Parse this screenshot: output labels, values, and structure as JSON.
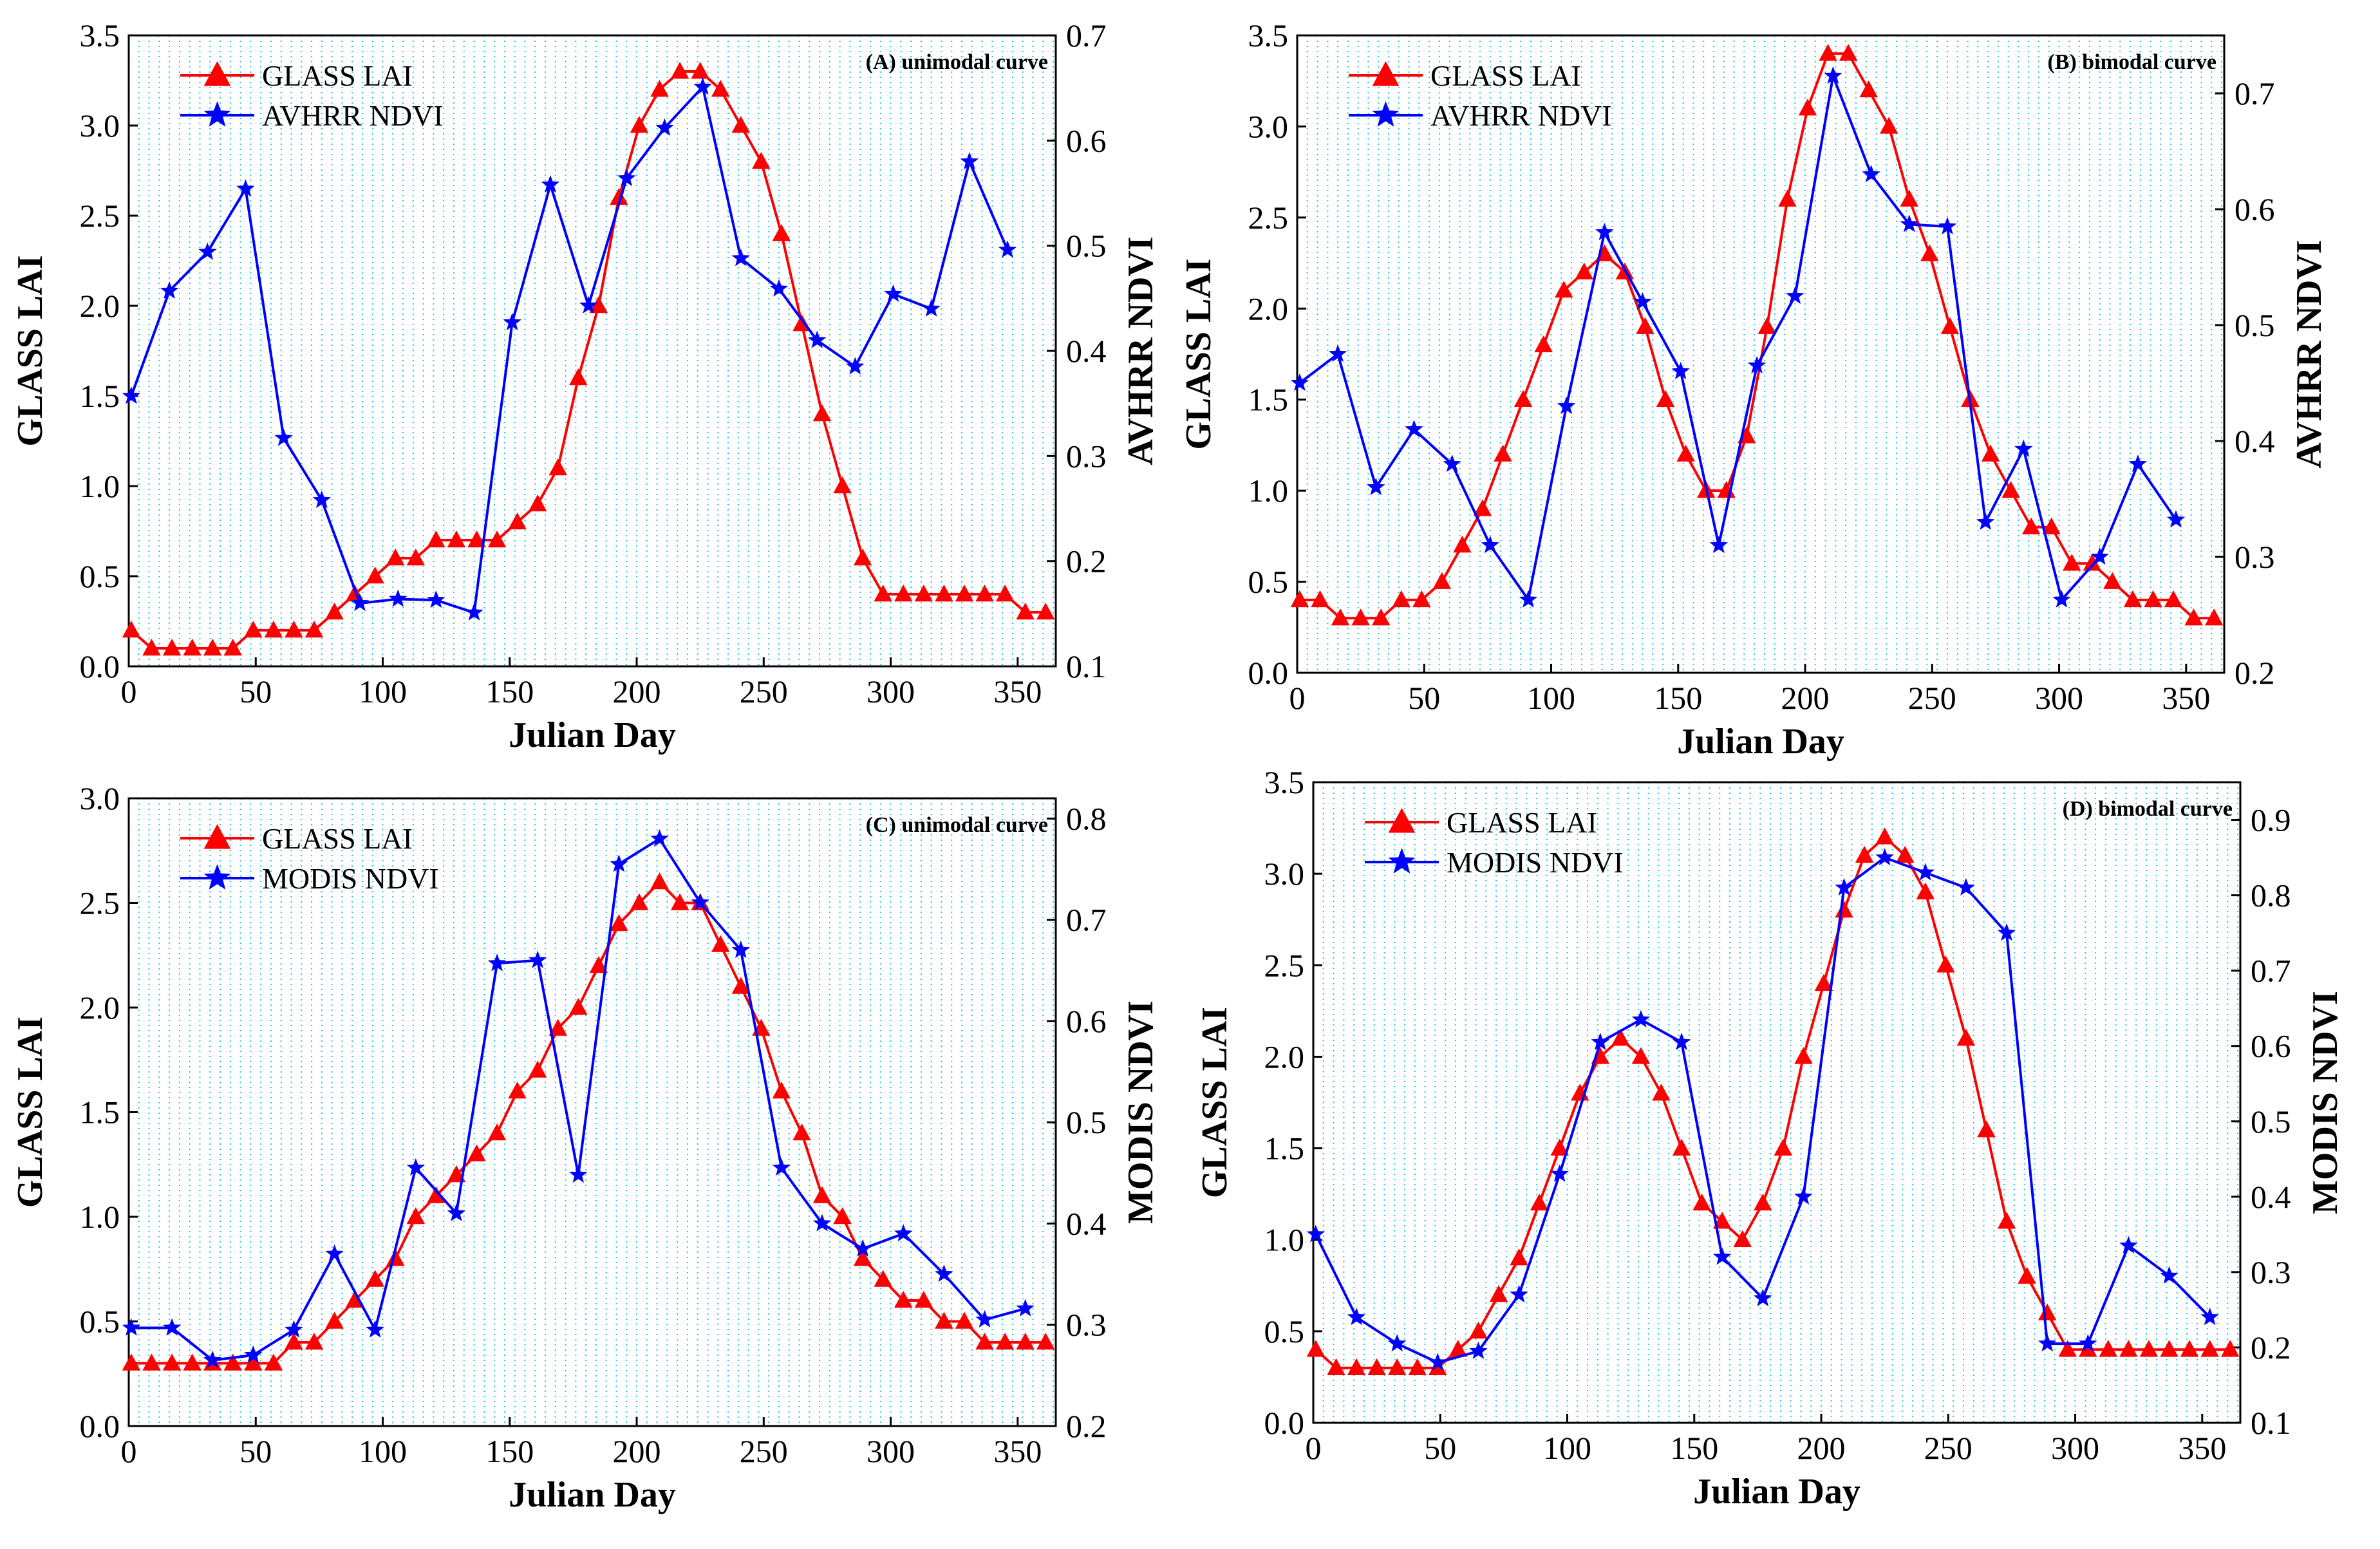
{
  "chart_data": [
    {
      "type": "line",
      "title": "(A)  unimodal curve",
      "xlabel": "Julian Day",
      "ylabel": "GLASS LAI",
      "y2label": "AVHRR NDVI",
      "xlim": [
        0,
        365
      ],
      "ylim": [
        0,
        3.5
      ],
      "y2lim": [
        0.1,
        0.7
      ],
      "xticks": [
        "0",
        "50",
        "100",
        "150",
        "200",
        "250",
        "300",
        "350"
      ],
      "yticks": [
        "0.0",
        "0.5",
        "1.0",
        "1.5",
        "2.0",
        "2.5",
        "3.0",
        "3.5"
      ],
      "y2ticks": [
        "0.1",
        "0.2",
        "0.3",
        "0.4",
        "0.5",
        "0.6",
        "0.7"
      ],
      "legend": [
        "GLASS LAI",
        "AVHRR NDVI"
      ],
      "series": [
        {
          "name": "GLASS LAI",
          "axis": "left",
          "color": "#ff0000",
          "marker": "triangle",
          "x": [
            1,
            9,
            17,
            25,
            33,
            41,
            49,
            57,
            65,
            73,
            81,
            89,
            97,
            105,
            113,
            121,
            129,
            137,
            145,
            153,
            161,
            169,
            177,
            185,
            193,
            201,
            209,
            217,
            225,
            233,
            241,
            249,
            257,
            265,
            273,
            281,
            289,
            297,
            305,
            313,
            321,
            329,
            337,
            345,
            353,
            361
          ],
          "y": [
            0.2,
            0.1,
            0.1,
            0.1,
            0.1,
            0.1,
            0.2,
            0.2,
            0.2,
            0.2,
            0.3,
            0.4,
            0.5,
            0.6,
            0.6,
            0.7,
            0.7,
            0.7,
            0.7,
            0.8,
            0.9,
            1.1,
            1.6,
            2.0,
            2.6,
            3.0,
            3.2,
            3.3,
            3.3,
            3.2,
            3.0,
            2.8,
            2.4,
            1.9,
            1.4,
            1.0,
            0.6,
            0.4,
            0.4,
            0.4,
            0.4,
            0.4,
            0.4,
            0.4,
            0.3,
            0.3
          ]
        },
        {
          "name": "AVHRR NDVI",
          "axis": "right",
          "color": "#0000ff",
          "marker": "star",
          "x": [
            1,
            16,
            31,
            46,
            61,
            76,
            91,
            106,
            121,
            136,
            151,
            166,
            181,
            196,
            211,
            226,
            241,
            256,
            271,
            286,
            301,
            316,
            331,
            346
          ],
          "y": [
            0.357,
            0.457,
            0.494,
            0.554,
            0.317,
            0.258,
            0.16,
            0.164,
            0.163,
            0.151,
            0.427,
            0.558,
            0.443,
            0.564,
            0.612,
            0.651,
            0.488,
            0.459,
            0.41,
            0.385,
            0.454,
            0.44,
            0.58,
            0.496
          ]
        }
      ]
    },
    {
      "type": "line",
      "title": "(B)  bimodal curve",
      "xlabel": "Julian Day",
      "ylabel": "GLASS LAI",
      "y2label": "AVHRR NDVI",
      "xlim": [
        0,
        365
      ],
      "ylim": [
        0,
        3.5
      ],
      "y2lim": [
        0.2,
        0.75
      ],
      "xticks": [
        "0",
        "50",
        "100",
        "150",
        "200",
        "250",
        "300",
        "350"
      ],
      "yticks": [
        "0.0",
        "0.5",
        "1.0",
        "1.5",
        "2.0",
        "2.5",
        "3.0",
        "3.5"
      ],
      "y2ticks": [
        "0.2",
        "0.3",
        "0.4",
        "0.5",
        "0.6",
        "0.7"
      ],
      "legend": [
        "GLASS LAI",
        "AVHRR NDVI"
      ],
      "series": [
        {
          "name": "GLASS LAI",
          "axis": "left",
          "color": "#ff0000",
          "marker": "triangle",
          "x": [
            1,
            9,
            17,
            25,
            33,
            41,
            49,
            57,
            65,
            73,
            81,
            89,
            97,
            105,
            113,
            121,
            129,
            137,
            145,
            153,
            161,
            169,
            177,
            185,
            193,
            201,
            209,
            217,
            225,
            233,
            241,
            249,
            257,
            265,
            273,
            281,
            289,
            297,
            305,
            313,
            321,
            329,
            337,
            345,
            353,
            361
          ],
          "y": [
            0.4,
            0.4,
            0.3,
            0.3,
            0.3,
            0.4,
            0.4,
            0.5,
            0.7,
            0.9,
            1.2,
            1.5,
            1.8,
            2.1,
            2.2,
            2.3,
            2.2,
            1.9,
            1.5,
            1.2,
            1.0,
            1.0,
            1.3,
            1.9,
            2.6,
            3.1,
            3.4,
            3.4,
            3.2,
            3.0,
            2.6,
            2.3,
            1.9,
            1.5,
            1.2,
            1.0,
            0.8,
            0.8,
            0.6,
            0.6,
            0.5,
            0.4,
            0.4,
            0.4,
            0.3,
            0.3
          ]
        },
        {
          "name": "AVHRR NDVI",
          "axis": "right",
          "color": "#0000ff",
          "marker": "star",
          "x": [
            1,
            16,
            31,
            46,
            61,
            76,
            91,
            106,
            121,
            136,
            151,
            166,
            181,
            196,
            211,
            226,
            241,
            256,
            271,
            286,
            301,
            316,
            331,
            346
          ],
          "y": [
            0.45,
            0.475,
            0.36,
            0.41,
            0.38,
            0.31,
            0.263,
            0.43,
            0.58,
            0.52,
            0.46,
            0.31,
            0.465,
            0.525,
            0.715,
            0.63,
            0.587,
            0.585,
            0.33,
            0.393,
            0.263,
            0.3,
            0.38,
            0.332
          ]
        }
      ]
    },
    {
      "type": "line",
      "title": "(C)  unimodal curve",
      "xlabel": "Julian Day",
      "ylabel": "GLASS LAI",
      "y2label": "MODIS NDVI",
      "xlim": [
        0,
        365
      ],
      "ylim": [
        0,
        3.0
      ],
      "y2lim": [
        0.2,
        0.82
      ],
      "xticks": [
        "0",
        "50",
        "100",
        "150",
        "200",
        "250",
        "300",
        "350"
      ],
      "yticks": [
        "0.0",
        "0.5",
        "1.0",
        "1.5",
        "2.0",
        "2.5",
        "3.0"
      ],
      "y2ticks": [
        "0.2",
        "0.3",
        "0.4",
        "0.5",
        "0.6",
        "0.7",
        "0.8"
      ],
      "legend": [
        "GLASS LAI",
        "MODIS NDVI"
      ],
      "series": [
        {
          "name": "GLASS LAI",
          "axis": "left",
          "color": "#ff0000",
          "marker": "triangle",
          "x": [
            1,
            9,
            17,
            25,
            33,
            41,
            49,
            57,
            65,
            73,
            81,
            89,
            97,
            105,
            113,
            121,
            129,
            137,
            145,
            153,
            161,
            169,
            177,
            185,
            193,
            201,
            209,
            217,
            225,
            233,
            241,
            249,
            257,
            265,
            273,
            281,
            289,
            297,
            305,
            313,
            321,
            329,
            337,
            345,
            353,
            361
          ],
          "y": [
            0.3,
            0.3,
            0.3,
            0.3,
            0.3,
            0.3,
            0.3,
            0.3,
            0.4,
            0.4,
            0.5,
            0.6,
            0.7,
            0.8,
            1.0,
            1.1,
            1.2,
            1.3,
            1.4,
            1.6,
            1.7,
            1.9,
            2.0,
            2.2,
            2.4,
            2.5,
            2.6,
            2.5,
            2.5,
            2.3,
            2.1,
            1.9,
            1.6,
            1.4,
            1.1,
            1.0,
            0.8,
            0.7,
            0.6,
            0.6,
            0.5,
            0.5,
            0.4,
            0.4,
            0.4,
            0.4
          ]
        },
        {
          "name": "MODIS NDVI",
          "axis": "right",
          "color": "#0000ff",
          "marker": "star",
          "x": [
            1,
            17,
            33,
            49,
            65,
            81,
            97,
            113,
            129,
            145,
            161,
            177,
            193,
            209,
            225,
            241,
            257,
            273,
            289,
            305,
            321,
            337,
            353
          ],
          "y": [
            0.297,
            0.297,
            0.265,
            0.27,
            0.295,
            0.37,
            0.295,
            0.455,
            0.41,
            0.657,
            0.66,
            0.448,
            0.755,
            0.78,
            0.717,
            0.67,
            0.455,
            0.4,
            0.375,
            0.39,
            0.35,
            0.305,
            0.316
          ]
        }
      ]
    },
    {
      "type": "line",
      "title": "(D)  bimodal curve",
      "xlabel": "Julian Day",
      "ylabel": "GLASS LAI",
      "y2label": "MODIS NDVI",
      "xlim": [
        0,
        365
      ],
      "ylim": [
        0,
        3.5
      ],
      "y2lim": [
        0.1,
        0.95
      ],
      "xticks": [
        "0",
        "50",
        "100",
        "150",
        "200",
        "250",
        "300",
        "350"
      ],
      "yticks": [
        "0.0",
        "0.5",
        "1.0",
        "1.5",
        "2.0",
        "2.5",
        "3.0",
        "3.5"
      ],
      "y2ticks": [
        "0.1",
        "0.2",
        "0.3",
        "0.4",
        "0.5",
        "0.6",
        "0.7",
        "0.8",
        "0.9"
      ],
      "legend": [
        "GLASS LAI",
        "MODIS NDVI"
      ],
      "series": [
        {
          "name": "GLASS LAI",
          "axis": "left",
          "color": "#ff0000",
          "marker": "triangle",
          "x": [
            1,
            9,
            17,
            25,
            33,
            41,
            49,
            57,
            65,
            73,
            81,
            89,
            97,
            105,
            113,
            121,
            129,
            137,
            145,
            153,
            161,
            169,
            177,
            185,
            193,
            201,
            209,
            217,
            225,
            233,
            241,
            249,
            257,
            265,
            273,
            281,
            289,
            297,
            305,
            313,
            321,
            329,
            337,
            345,
            353,
            361
          ],
          "y": [
            0.4,
            0.3,
            0.3,
            0.3,
            0.3,
            0.3,
            0.3,
            0.4,
            0.5,
            0.7,
            0.9,
            1.2,
            1.5,
            1.8,
            2.0,
            2.1,
            2.0,
            1.8,
            1.5,
            1.2,
            1.1,
            1.0,
            1.2,
            1.5,
            2.0,
            2.4,
            2.8,
            3.1,
            3.2,
            3.1,
            2.9,
            2.5,
            2.1,
            1.6,
            1.1,
            0.8,
            0.6,
            0.4,
            0.4,
            0.4,
            0.4,
            0.4,
            0.4,
            0.4,
            0.4,
            0.4
          ]
        },
        {
          "name": "MODIS NDVI",
          "axis": "right",
          "color": "#0000ff",
          "marker": "star",
          "x": [
            1,
            17,
            33,
            49,
            65,
            81,
            97,
            113,
            129,
            145,
            161,
            177,
            193,
            209,
            225,
            241,
            257,
            273,
            289,
            305,
            321,
            337,
            353
          ],
          "y": [
            0.35,
            0.24,
            0.205,
            0.18,
            0.195,
            0.27,
            0.43,
            0.605,
            0.635,
            0.605,
            0.32,
            0.265,
            0.4,
            0.81,
            0.85,
            0.83,
            0.81,
            0.75,
            0.205,
            0.205,
            0.335,
            0.295,
            0.24
          ]
        }
      ]
    }
  ]
}
